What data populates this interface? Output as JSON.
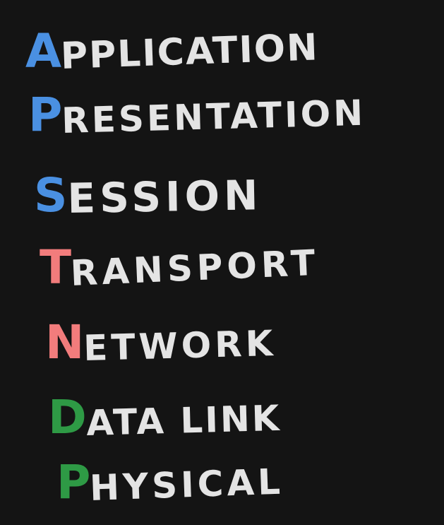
{
  "colors": {
    "background": "#141414",
    "text": "#e4e4e4",
    "blue": "#4a90e2",
    "red": "#f27c7c",
    "green": "#2e9a45"
  },
  "layers": [
    {
      "initial": "A",
      "rest": "PPLICATION",
      "color": "#4a90e2"
    },
    {
      "initial": "P",
      "rest": "RESENTATION",
      "color": "#4a90e2"
    },
    {
      "initial": "S",
      "rest": "ESSION",
      "color": "#4a90e2"
    },
    {
      "initial": "T",
      "rest": "RANSPORT",
      "color": "#f27c7c"
    },
    {
      "initial": "N",
      "rest": "ETWORK",
      "color": "#f27c7c"
    },
    {
      "initial": "D",
      "rest": "ATA LINK",
      "color": "#2e9a45"
    },
    {
      "initial": "P",
      "rest": "HYSICAL",
      "color": "#2e9a45"
    }
  ]
}
